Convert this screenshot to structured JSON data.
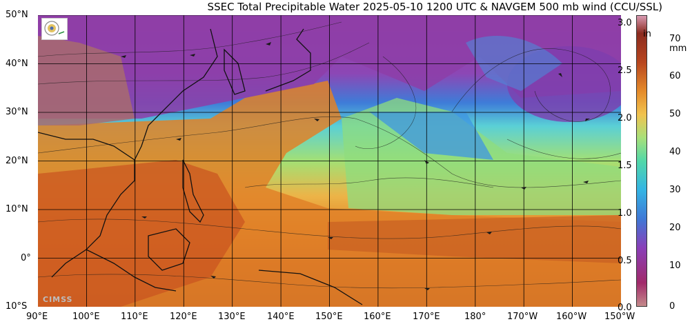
{
  "title": "SSEC Total Precipitable Water  2025-05-10 1200 UTC & NAVGEM 500 mb wind (CCU/SSL)",
  "lat_labels": [
    "50°N",
    "40°N",
    "30°N",
    "20°N",
    "10°N",
    "0°",
    "10°S"
  ],
  "lon_labels": [
    "90°E",
    "100°E",
    "110°E",
    "120°E",
    "130°E",
    "140°E",
    "150°E",
    "160°E",
    "170°E",
    "180°",
    "170°W",
    "160°W",
    "150°W"
  ],
  "colorbar": {
    "inch_unit": "in",
    "mm_unit": "mm",
    "inch_ticks": [
      "3.0",
      "2.5",
      "2.0",
      "1.5",
      "1.0",
      "0.5",
      "0.0"
    ],
    "mm_ticks": [
      "70",
      "60",
      "50",
      "40",
      "30",
      "20",
      "10",
      "0"
    ],
    "stops": [
      "#c48a8a",
      "#a12a6a",
      "#8a3fb8",
      "#3f78d6",
      "#34b4e4",
      "#52d8a8",
      "#a8e07a",
      "#f1c34f",
      "#e58b2a",
      "#b8461f",
      "#8b2b1f",
      "#d99ab2"
    ]
  },
  "watermark": "CIMSS",
  "colors": {
    "dry": "#8b3fa8",
    "mid_blue": "#3d86d8",
    "cyan": "#57d2d6",
    "green": "#95e06c",
    "orange": "#e9912f",
    "deep_orange": "#bd4c22",
    "land_dry": "#a06a6a"
  }
}
